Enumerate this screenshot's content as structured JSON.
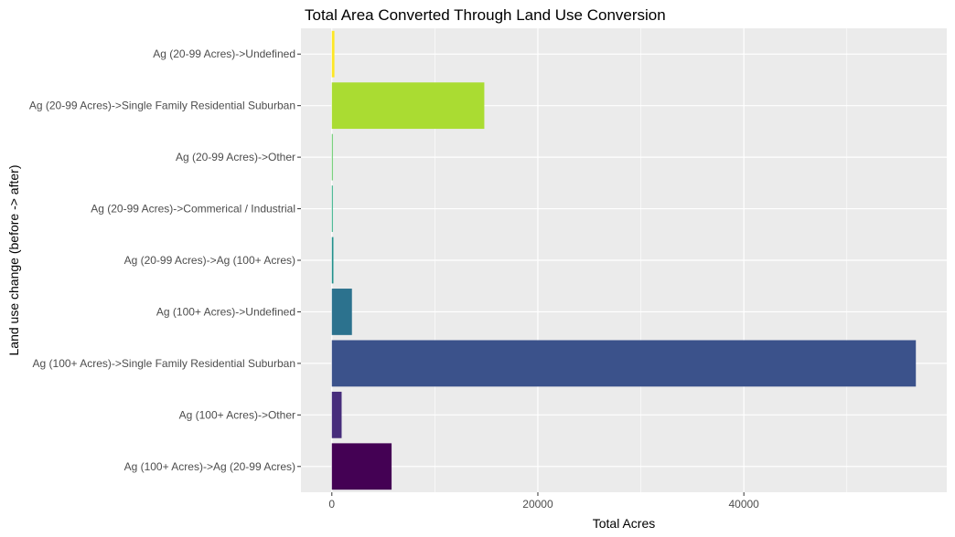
{
  "chart_data": {
    "type": "bar",
    "orientation": "horizontal",
    "title": "Total Area Converted Through Land Use Conversion",
    "xlabel": "Total Acres",
    "ylabel": "Land use change (before -> after)",
    "categories": [
      "Ag (100+ Acres)->Ag (20-99 Acres)",
      "Ag (100+ Acres)->Other",
      "Ag (100+ Acres)->Single Family Residential Suburban",
      "Ag (100+ Acres)->Undefined",
      "Ag (20-99 Acres)->Ag (100+ Acres)",
      "Ag (20-99 Acres)->Commerical / Industrial",
      "Ag (20-99 Acres)->Other",
      "Ag (20-99 Acres)->Single Family Residential Suburban",
      "Ag (20-99 Acres)->Undefined"
    ],
    "values": [
      5800,
      950,
      56700,
      1950,
      150,
      60,
      50,
      14800,
      250
    ],
    "colors": [
      "#440154",
      "#472D7B",
      "#3B528B",
      "#2C728E",
      "#21908C",
      "#27AD81",
      "#5DC863",
      "#AADC32",
      "#FDE725"
    ],
    "xticks": [
      0,
      20000,
      40000
    ],
    "xtick_labels": [
      "0",
      "20000",
      "40000"
    ],
    "xlim": [
      -3000,
      59700
    ],
    "grid": true,
    "panel_background": "#EBEBEB",
    "grid_color": "#FFFFFF"
  }
}
